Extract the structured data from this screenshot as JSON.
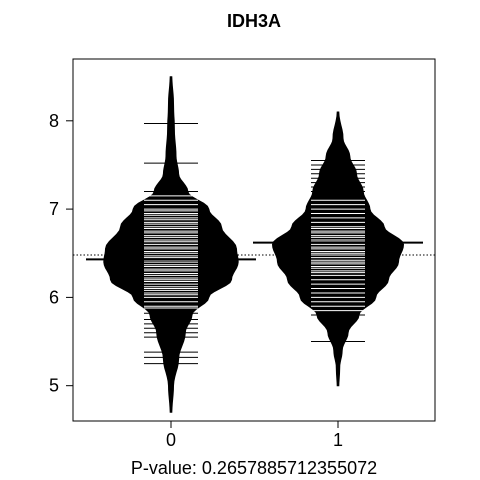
{
  "chart_data": {
    "type": "beanplot",
    "title": "IDH3A",
    "xlabel": "P-value: 0.265788571235507​2",
    "ylabel": "",
    "categories": [
      "0",
      "1"
    ],
    "ylim": [
      4.6,
      8.7
    ],
    "yticks": [
      5,
      6,
      7,
      8
    ],
    "overall_reference_line": 6.48,
    "series": [
      {
        "group": "0",
        "mean": 6.43,
        "density_y": [
          4.7,
          5.0,
          5.3,
          5.6,
          5.8,
          6.0,
          6.2,
          6.4,
          6.55,
          6.8,
          7.0,
          7.2,
          7.4,
          7.6,
          7.9,
          8.2,
          8.5
        ],
        "density_halfwidth": [
          0.01,
          0.03,
          0.09,
          0.17,
          0.25,
          0.45,
          0.72,
          0.8,
          0.78,
          0.6,
          0.45,
          0.2,
          0.09,
          0.06,
          0.04,
          0.03,
          0.01
        ],
        "observations": [
          5.25,
          5.32,
          5.38,
          5.55,
          5.6,
          5.65,
          5.7,
          5.75,
          5.82,
          5.88,
          5.9,
          5.95,
          6.0,
          6.03,
          6.05,
          6.08,
          6.1,
          6.12,
          6.15,
          6.18,
          6.2,
          6.22,
          6.25,
          6.27,
          6.3,
          6.32,
          6.35,
          6.37,
          6.4,
          6.42,
          6.45,
          6.47,
          6.5,
          6.52,
          6.55,
          6.57,
          6.6,
          6.63,
          6.65,
          6.68,
          6.7,
          6.73,
          6.75,
          6.78,
          6.8,
          6.83,
          6.85,
          6.88,
          6.9,
          6.93,
          6.95,
          6.98,
          7.0,
          7.05,
          7.1,
          7.15,
          7.2,
          7.52,
          7.97
        ]
      },
      {
        "group": "1",
        "mean": 6.62,
        "density_y": [
          5.0,
          5.2,
          5.4,
          5.6,
          5.8,
          6.0,
          6.2,
          6.4,
          6.6,
          6.8,
          7.0,
          7.2,
          7.4,
          7.6,
          7.8,
          8.1
        ],
        "density_halfwidth": [
          0.01,
          0.02,
          0.05,
          0.12,
          0.25,
          0.45,
          0.6,
          0.72,
          0.78,
          0.55,
          0.38,
          0.3,
          0.22,
          0.14,
          0.06,
          0.01
        ],
        "observations": [
          5.5,
          5.8,
          5.85,
          5.9,
          5.95,
          6.0,
          6.05,
          6.1,
          6.15,
          6.2,
          6.25,
          6.28,
          6.3,
          6.33,
          6.35,
          6.38,
          6.4,
          6.42,
          6.45,
          6.48,
          6.5,
          6.52,
          6.55,
          6.57,
          6.6,
          6.63,
          6.65,
          6.68,
          6.7,
          6.73,
          6.75,
          6.78,
          6.8,
          6.85,
          6.9,
          6.95,
          7.0,
          7.05,
          7.1,
          7.2,
          7.25,
          7.3,
          7.35,
          7.4,
          7.45,
          7.5,
          7.55
        ]
      }
    ]
  }
}
